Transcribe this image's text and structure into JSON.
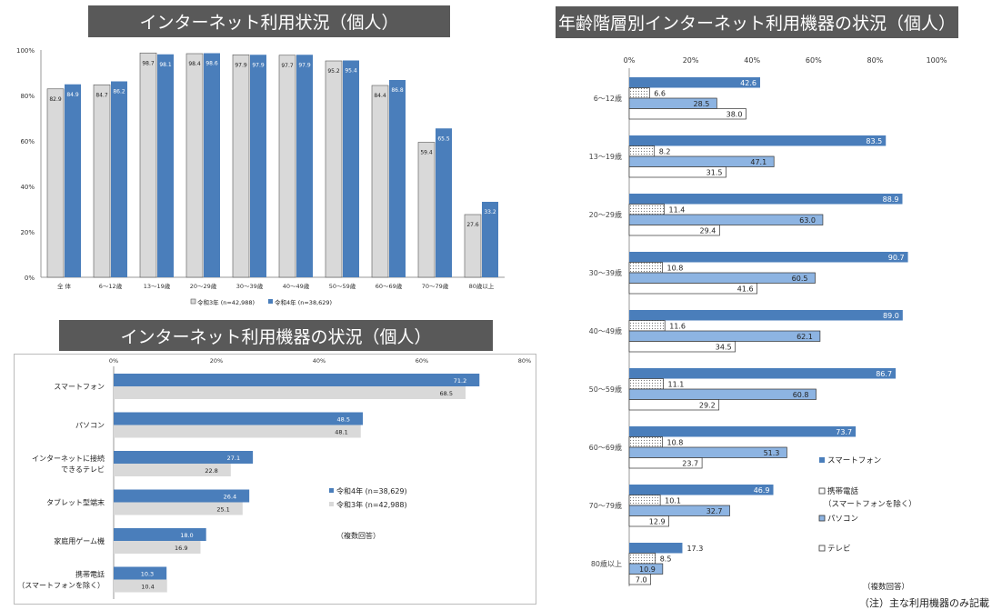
{
  "colors": {
    "blue": "#4a7ebb",
    "gray": "#d9d9d9",
    "light_blue": "#8db4e2",
    "dot": "#ffffff",
    "banner": "#595959"
  },
  "panel1": {
    "title": "インターネット利用状況（個人）",
    "chart_data": {
      "type": "bar",
      "categories": [
        "全 体",
        "6～12歳",
        "13～19歳",
        "20～29歳",
        "30～39歳",
        "40～49歳",
        "50～59歳",
        "60～69歳",
        "70～79歳",
        "80歳以上"
      ],
      "series": [
        {
          "name": "令和3年 (n=42,988)",
          "values": [
            82.9,
            84.7,
            98.7,
            98.4,
            97.9,
            97.7,
            95.2,
            84.4,
            59.4,
            27.6
          ]
        },
        {
          "name": "令和4年 (n=38,629)",
          "values": [
            84.9,
            86.2,
            98.1,
            98.6,
            97.9,
            97.9,
            95.4,
            86.8,
            65.5,
            33.2
          ]
        }
      ],
      "ylim": [
        0,
        100
      ],
      "yticks": [
        "0%",
        "20%",
        "40%",
        "60%",
        "80%",
        "100%"
      ],
      "grid": false,
      "legend": "bottom"
    }
  },
  "panel2": {
    "title": "インターネット利用機器の状況（個人）",
    "chart_data": {
      "type": "bar",
      "orientation": "horizontal",
      "categories": [
        "スマートフォン",
        "パソコン",
        "インターネットに接続\nできるテレビ",
        "タブレット型端末",
        "家庭用ゲーム機",
        "携帯電話\n（スマートフォンを除く）"
      ],
      "series": [
        {
          "name": "令和4年 (n=38,629)",
          "values": [
            71.2,
            48.5,
            27.1,
            26.4,
            18.0,
            10.3
          ]
        },
        {
          "name": "令和3年 (n=42,988)",
          "values": [
            68.5,
            48.1,
            22.8,
            25.1,
            16.9,
            10.4
          ]
        }
      ],
      "xlim": [
        0,
        80
      ],
      "xticks": [
        "0%",
        "20%",
        "40%",
        "60%",
        "80%"
      ],
      "note": "（複数回答）",
      "legend": "right"
    }
  },
  "panel3": {
    "title": "年齢階層別インターネット利用機器の状況（個人）",
    "chart_data": {
      "type": "bar",
      "orientation": "horizontal",
      "categories": [
        "6～12歳",
        "13～19歳",
        "20～29歳",
        "30～39歳",
        "40～49歳",
        "50～59歳",
        "60～69歳",
        "70～79歳",
        "80歳以上"
      ],
      "series": [
        {
          "name": "スマートフォン",
          "values": [
            42.6,
            83.5,
            88.9,
            90.7,
            89.0,
            86.7,
            73.7,
            46.9,
            17.3
          ]
        },
        {
          "name": "携帯電話\n（スマートフォンを除く）",
          "values": [
            6.6,
            8.2,
            11.4,
            10.8,
            11.6,
            11.1,
            10.8,
            10.1,
            8.5
          ]
        },
        {
          "name": "パソコン",
          "values": [
            28.5,
            47.1,
            63.0,
            60.5,
            62.1,
            60.8,
            51.3,
            32.7,
            10.9
          ]
        },
        {
          "name": "テレビ",
          "values": [
            38.0,
            31.5,
            29.4,
            41.6,
            34.5,
            29.2,
            23.7,
            12.9,
            7.0
          ]
        }
      ],
      "xlim": [
        0,
        100
      ],
      "xticks": [
        "0%",
        "20%",
        "40%",
        "60%",
        "80%",
        "100%"
      ],
      "note": "（複数回答）",
      "footnote": "（注）主な利用機器のみ記載",
      "legend": "right"
    }
  }
}
